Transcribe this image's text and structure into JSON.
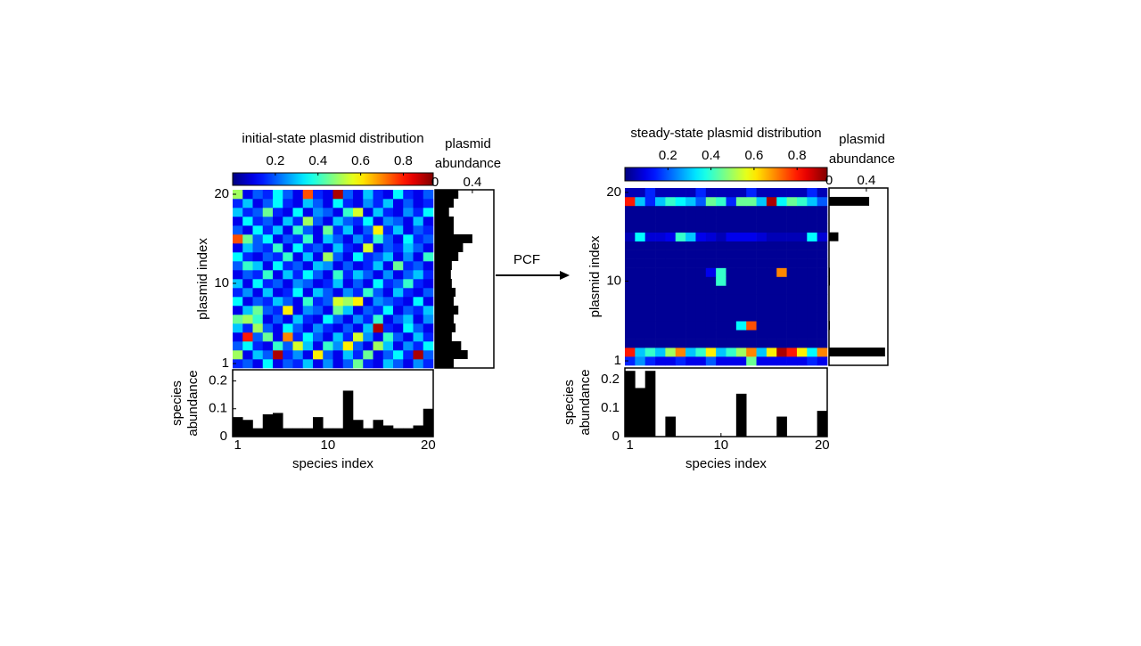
{
  "chart_data": [
    {
      "type": "heatmap",
      "title": "initial-state plasmid distribution",
      "x_label": "species index",
      "y_label": "plasmid index",
      "xlim": [
        0.5,
        20.5
      ],
      "ylim": [
        0.5,
        20.5
      ],
      "xticks": [
        1,
        10,
        20
      ],
      "yticks": [
        1,
        10,
        20
      ],
      "colorbar": {
        "lim": [
          0,
          0.94
        ],
        "ticks": [
          0.2,
          0.4,
          0.6,
          0.8
        ]
      },
      "z": [
        [
          0.15,
          0.2,
          0.1,
          0.35,
          0.1,
          0.2,
          0.15,
          0.3,
          0.1,
          0.25,
          0.1,
          0.2,
          0.45,
          0.15,
          0.1,
          0.3,
          0.2,
          0.1,
          0.25,
          0.15
        ],
        [
          0.5,
          0.1,
          0.3,
          0.2,
          0.9,
          0.15,
          0.25,
          0.1,
          0.6,
          0.2,
          0.1,
          0.3,
          0.15,
          0.45,
          0.1,
          0.2,
          0.35,
          0.15,
          0.9,
          0.2
        ],
        [
          0.2,
          0.35,
          0.15,
          0.1,
          0.4,
          0.2,
          0.55,
          0.3,
          0.1,
          0.4,
          0.25,
          0.6,
          0.2,
          0.1,
          0.5,
          0.3,
          0.1,
          0.25,
          0.15,
          0.35
        ],
        [
          0.1,
          0.8,
          0.2,
          0.45,
          0.1,
          0.7,
          0.15,
          0.35,
          0.2,
          0.1,
          0.3,
          0.15,
          0.55,
          0.25,
          0.1,
          0.4,
          0.2,
          0.1,
          0.3,
          0.15
        ],
        [
          0.3,
          0.15,
          0.5,
          0.2,
          0.1,
          0.35,
          0.2,
          0.1,
          0.25,
          0.15,
          0.1,
          0.2,
          0.1,
          0.3,
          0.9,
          0.15,
          0.1,
          0.35,
          0.2,
          0.1
        ],
        [
          0.45,
          0.5,
          0.4,
          0.1,
          0.2,
          0.1,
          0.3,
          0.15,
          0.1,
          0.35,
          0.2,
          0.1,
          0.25,
          0.15,
          0.4,
          0.1,
          0.2,
          0.3,
          0.1,
          0.25
        ],
        [
          0.1,
          0.3,
          0.45,
          0.2,
          0.15,
          0.6,
          0.1,
          0.25,
          0.2,
          0.1,
          0.45,
          0.3,
          0.1,
          0.2,
          0.15,
          0.35,
          0.1,
          0.2,
          0.15,
          0.3
        ],
        [
          0.35,
          0.1,
          0.2,
          0.15,
          0.3,
          0.2,
          0.1,
          0.4,
          0.15,
          0.2,
          0.55,
          0.5,
          0.6,
          0.1,
          0.25,
          0.2,
          0.15,
          0.1,
          0.35,
          0.1
        ],
        [
          0.15,
          0.25,
          0.1,
          0.3,
          0.1,
          0.15,
          0.35,
          0.1,
          0.3,
          0.2,
          0.1,
          0.25,
          0.15,
          0.4,
          0.2,
          0.1,
          0.3,
          0.15,
          0.1,
          0.2
        ],
        [
          0.3,
          0.1,
          0.35,
          0.15,
          0.2,
          0.1,
          0.25,
          0.2,
          0.1,
          0.15,
          0.3,
          0.1,
          0.2,
          0.1,
          0.35,
          0.15,
          0.2,
          0.4,
          0.15,
          0.1
        ],
        [
          0.1,
          0.2,
          0.15,
          0.4,
          0.1,
          0.3,
          0.15,
          0.35,
          0.2,
          0.1,
          0.4,
          0.15,
          0.3,
          0.2,
          0.1,
          0.25,
          0.1,
          0.2,
          0.3,
          0.15
        ],
        [
          0.2,
          0.4,
          0.3,
          0.1,
          0.35,
          0.15,
          0.2,
          0.1,
          0.3,
          0.25,
          0.1,
          0.2,
          0.1,
          0.15,
          0.3,
          0.1,
          0.45,
          0.15,
          0.2,
          0.1
        ],
        [
          0.35,
          0.15,
          0.1,
          0.2,
          0.15,
          0.4,
          0.1,
          0.3,
          0.1,
          0.5,
          0.2,
          0.1,
          0.35,
          0.15,
          0.2,
          0.3,
          0.1,
          0.25,
          0.1,
          0.4
        ],
        [
          0.1,
          0.3,
          0.2,
          0.15,
          0.4,
          0.1,
          0.35,
          0.15,
          0.2,
          0.1,
          0.3,
          0.15,
          0.1,
          0.55,
          0.1,
          0.2,
          0.15,
          0.3,
          0.2,
          0.1
        ],
        [
          0.75,
          0.45,
          0.2,
          0.35,
          0.1,
          0.2,
          0.15,
          0.4,
          0.1,
          0.3,
          0.2,
          0.1,
          0.25,
          0.15,
          0.4,
          0.2,
          0.1,
          0.35,
          0.15,
          0.2
        ],
        [
          0.2,
          0.1,
          0.35,
          0.15,
          0.3,
          0.1,
          0.4,
          0.2,
          0.1,
          0.45,
          0.15,
          0.3,
          0.1,
          0.2,
          0.6,
          0.15,
          0.3,
          0.1,
          0.2,
          0.15
        ],
        [
          0.1,
          0.35,
          0.15,
          0.2,
          0.1,
          0.3,
          0.15,
          0.5,
          0.2,
          0.1,
          0.3,
          0.2,
          0.15,
          0.35,
          0.1,
          0.25,
          0.2,
          0.1,
          0.3,
          0.1
        ],
        [
          0.3,
          0.15,
          0.2,
          0.45,
          0.15,
          0.1,
          0.35,
          0.1,
          0.25,
          0.2,
          0.1,
          0.4,
          0.55,
          0.1,
          0.3,
          0.15,
          0.1,
          0.25,
          0.15,
          0.35
        ],
        [
          0.15,
          0.3,
          0.1,
          0.2,
          0.35,
          0.15,
          0.1,
          0.3,
          0.2,
          0.1,
          0.35,
          0.15,
          0.1,
          0.25,
          0.15,
          0.3,
          0.1,
          0.2,
          0.1,
          0.15
        ],
        [
          0.5,
          0.1,
          0.2,
          0.15,
          0.35,
          0.2,
          0.1,
          0.75,
          0.15,
          0.1,
          0.9,
          0.2,
          0.1,
          0.3,
          0.15,
          0.1,
          0.35,
          0.15,
          0.1,
          0.2
        ]
      ],
      "plasmid_abundance": {
        "type": "bar",
        "label": [
          "plasmid",
          "abundance"
        ],
        "xlim": [
          0,
          0.63
        ],
        "xticks": [
          0,
          0.4
        ],
        "values": [
          0.2,
          0.35,
          0.28,
          0.18,
          0.22,
          0.2,
          0.25,
          0.2,
          0.22,
          0.18,
          0.17,
          0.18,
          0.25,
          0.3,
          0.4,
          0.2,
          0.2,
          0.15,
          0.2,
          0.25
        ]
      },
      "species_abundance": {
        "type": "bar",
        "label": [
          "species",
          "abundance"
        ],
        "ylim": [
          0,
          0.24
        ],
        "yticks": [
          0,
          0.1,
          0.2
        ],
        "values": [
          0.07,
          0.06,
          0.03,
          0.08,
          0.085,
          0.03,
          0.03,
          0.03,
          0.07,
          0.03,
          0.03,
          0.165,
          0.06,
          0.03,
          0.06,
          0.04,
          0.03,
          0.03,
          0.04,
          0.1
        ]
      }
    },
    {
      "type": "heatmap",
      "title": "steady-state plasmid distribution",
      "x_label": "species index",
      "y_label": "plasmid index",
      "xlim": [
        0.5,
        20.5
      ],
      "ylim": [
        0.5,
        20.5
      ],
      "xticks": [
        1,
        10,
        20
      ],
      "yticks": [
        1,
        10,
        20
      ],
      "colorbar": {
        "lim": [
          0,
          0.94
        ],
        "ticks": [
          0.2,
          0.4,
          0.6,
          0.8
        ]
      },
      "z": [
        [
          0.15,
          0.25,
          0.15,
          0.1,
          0.1,
          0.15,
          0.1,
          0.1,
          0.2,
          0.1,
          0.1,
          0.1,
          0.45,
          0.1,
          0.1,
          0.1,
          0.1,
          0.1,
          0.15,
          0.1
        ],
        [
          0.8,
          0.3,
          0.4,
          0.3,
          0.5,
          0.7,
          0.3,
          0.4,
          0.6,
          0.3,
          0.4,
          0.5,
          0.7,
          0.3,
          0.6,
          0.9,
          0.8,
          0.6,
          0.35,
          0.7
        ],
        [
          0.02,
          0.02,
          0.02,
          0.02,
          0.02,
          0.02,
          0.02,
          0.02,
          0.02,
          0.02,
          0.02,
          0.02,
          0.02,
          0.02,
          0.02,
          0.02,
          0.02,
          0.02,
          0.02,
          0.02
        ],
        [
          0.02,
          0.02,
          0.02,
          0.02,
          0.02,
          0.02,
          0.02,
          0.02,
          0.02,
          0.02,
          0.02,
          0.02,
          0.02,
          0.02,
          0.02,
          0.02,
          0.02,
          0.02,
          0.02,
          0.02
        ],
        [
          0.02,
          0.02,
          0.02,
          0.02,
          0.02,
          0.02,
          0.02,
          0.02,
          0.02,
          0.02,
          0.02,
          0.35,
          0.75,
          0.02,
          0.02,
          0.02,
          0.02,
          0.02,
          0.02,
          0.02
        ],
        [
          0.02,
          0.02,
          0.02,
          0.02,
          0.02,
          0.02,
          0.02,
          0.02,
          0.02,
          0.02,
          0.02,
          0.02,
          0.02,
          0.02,
          0.02,
          0.02,
          0.02,
          0.02,
          0.02,
          0.02
        ],
        [
          0.02,
          0.02,
          0.02,
          0.02,
          0.02,
          0.02,
          0.02,
          0.02,
          0.02,
          0.02,
          0.02,
          0.02,
          0.02,
          0.02,
          0.02,
          0.02,
          0.02,
          0.02,
          0.02,
          0.02
        ],
        [
          0.02,
          0.02,
          0.02,
          0.02,
          0.02,
          0.02,
          0.02,
          0.02,
          0.02,
          0.02,
          0.02,
          0.02,
          0.02,
          0.02,
          0.02,
          0.02,
          0.02,
          0.02,
          0.02,
          0.02
        ],
        [
          0.02,
          0.02,
          0.02,
          0.02,
          0.02,
          0.02,
          0.02,
          0.02,
          0.02,
          0.02,
          0.02,
          0.02,
          0.02,
          0.02,
          0.02,
          0.02,
          0.02,
          0.02,
          0.02,
          0.02
        ],
        [
          0.02,
          0.02,
          0.02,
          0.02,
          0.02,
          0.02,
          0.02,
          0.02,
          0.02,
          0.4,
          0.02,
          0.02,
          0.02,
          0.02,
          0.02,
          0.02,
          0.02,
          0.02,
          0.02,
          0.02
        ],
        [
          0.02,
          0.02,
          0.02,
          0.02,
          0.02,
          0.02,
          0.02,
          0.02,
          0.1,
          0.4,
          0.02,
          0.02,
          0.02,
          0.02,
          0.02,
          0.7,
          0.02,
          0.02,
          0.02,
          0.02
        ],
        [
          0.02,
          0.02,
          0.02,
          0.02,
          0.02,
          0.02,
          0.02,
          0.02,
          0.02,
          0.02,
          0.02,
          0.02,
          0.02,
          0.02,
          0.02,
          0.02,
          0.02,
          0.02,
          0.02,
          0.02
        ],
        [
          0.02,
          0.02,
          0.02,
          0.02,
          0.02,
          0.02,
          0.02,
          0.02,
          0.02,
          0.02,
          0.02,
          0.02,
          0.02,
          0.02,
          0.02,
          0.02,
          0.02,
          0.02,
          0.02,
          0.02
        ],
        [
          0.02,
          0.02,
          0.02,
          0.02,
          0.02,
          0.02,
          0.02,
          0.02,
          0.02,
          0.02,
          0.02,
          0.02,
          0.02,
          0.02,
          0.02,
          0.02,
          0.02,
          0.02,
          0.02,
          0.02
        ],
        [
          0.05,
          0.35,
          0.08,
          0.08,
          0.1,
          0.4,
          0.3,
          0.1,
          0.08,
          0.05,
          0.1,
          0.1,
          0.1,
          0.08,
          0.05,
          0.05,
          0.05,
          0.05,
          0.35,
          0.08
        ],
        [
          0.02,
          0.02,
          0.02,
          0.02,
          0.02,
          0.02,
          0.02,
          0.02,
          0.02,
          0.02,
          0.02,
          0.02,
          0.02,
          0.02,
          0.02,
          0.02,
          0.02,
          0.02,
          0.02,
          0.02
        ],
        [
          0.02,
          0.02,
          0.02,
          0.02,
          0.02,
          0.02,
          0.02,
          0.02,
          0.02,
          0.02,
          0.02,
          0.02,
          0.02,
          0.02,
          0.02,
          0.02,
          0.02,
          0.02,
          0.02,
          0.02
        ],
        [
          0.02,
          0.02,
          0.02,
          0.02,
          0.02,
          0.02,
          0.02,
          0.02,
          0.02,
          0.02,
          0.02,
          0.02,
          0.02,
          0.02,
          0.02,
          0.02,
          0.02,
          0.02,
          0.02,
          0.02
        ],
        [
          0.8,
          0.3,
          0.15,
          0.3,
          0.4,
          0.35,
          0.3,
          0.2,
          0.45,
          0.4,
          0.15,
          0.45,
          0.45,
          0.3,
          0.9,
          0.35,
          0.45,
          0.4,
          0.3,
          0.2
        ],
        [
          0.05,
          0.05,
          0.15,
          0.05,
          0.05,
          0.05,
          0.05,
          0.15,
          0.05,
          0.05,
          0.05,
          0.05,
          0.15,
          0.05,
          0.05,
          0.05,
          0.05,
          0.05,
          0.15,
          0.05
        ]
      ],
      "plasmid_abundance": {
        "type": "bar",
        "label": [
          "plasmid",
          "abundance"
        ],
        "xlim": [
          0,
          0.63
        ],
        "xticks": [
          0,
          0.4
        ],
        "values": [
          0,
          0.6,
          0,
          0,
          0.01,
          0,
          0,
          0,
          0,
          0.01,
          0.01,
          0,
          0,
          0,
          0.1,
          0,
          0,
          0,
          0.43,
          0
        ]
      },
      "species_abundance": {
        "type": "bar",
        "label": [
          "species",
          "abundance"
        ],
        "ylim": [
          0,
          0.24
        ],
        "yticks": [
          0,
          0.1,
          0.2
        ],
        "values": [
          0.23,
          0.17,
          0.23,
          0,
          0.07,
          0,
          0,
          0,
          0,
          0,
          0,
          0.15,
          0,
          0,
          0,
          0.07,
          0,
          0,
          0,
          0.09
        ]
      }
    }
  ],
  "arrow_label": "PCF"
}
